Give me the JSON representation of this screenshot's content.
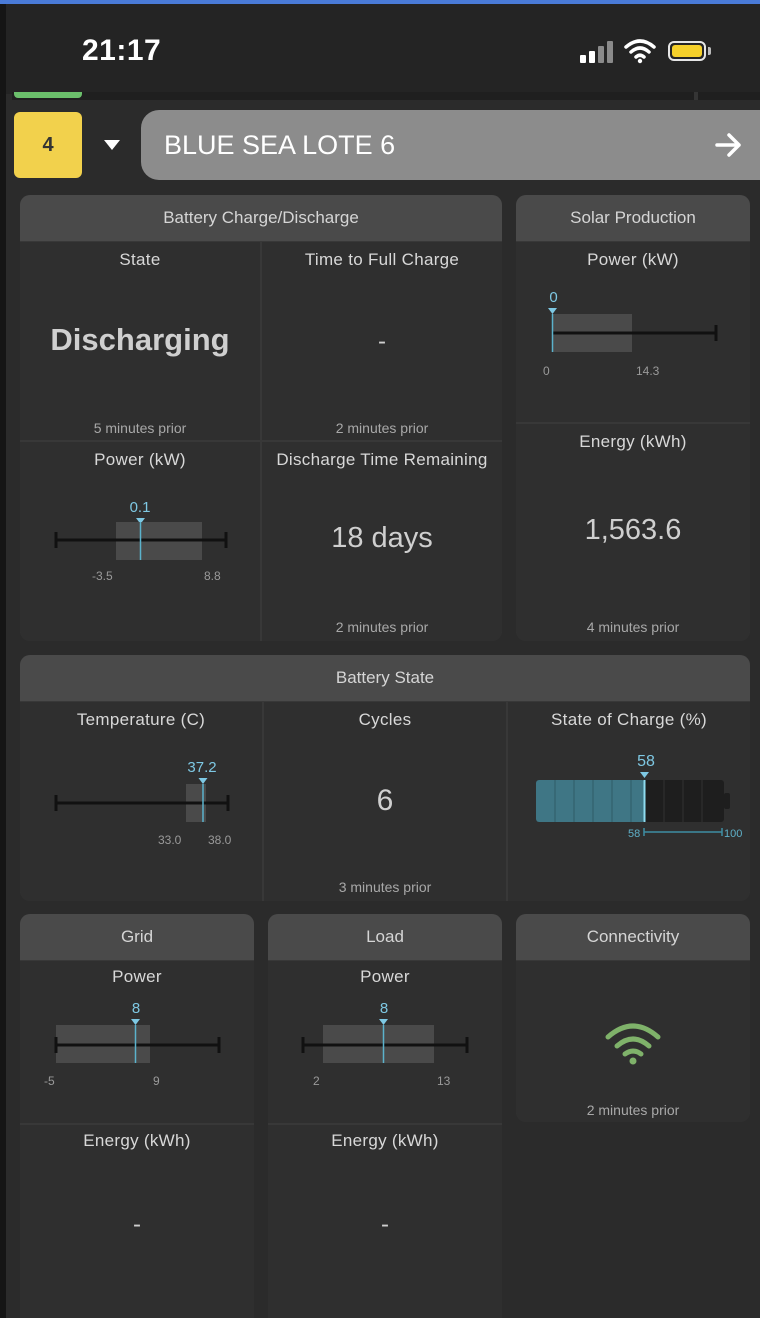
{
  "status_bar": {
    "time": "21:17"
  },
  "site": {
    "number": "4",
    "name": "BLUE SEA LOTE 6"
  },
  "battery_charge": {
    "title": "Battery Charge/Discharge",
    "state": {
      "label": "State",
      "value": "Discharging",
      "updated": "5 minutes prior"
    },
    "time_to_full": {
      "label": "Time to Full Charge",
      "value": "-",
      "updated": "2 minutes prior"
    },
    "power": {
      "label": "Power (kW)",
      "value": "0.1",
      "min": "-3.5",
      "max": "8.8"
    },
    "discharge_remaining": {
      "label": "Discharge Time Remaining",
      "value": "18 days",
      "updated": "2 minutes prior"
    }
  },
  "solar": {
    "title": "Solar Production",
    "power": {
      "label": "Power (kW)",
      "value": "0",
      "min": "0",
      "max": "14.3"
    },
    "energy": {
      "label": "Energy (kWh)",
      "value": "1,563.6",
      "updated": "4 minutes prior"
    }
  },
  "battery_state": {
    "title": "Battery State",
    "temperature": {
      "label": "Temperature (C)",
      "value": "37.2",
      "min": "33.0",
      "max": "38.0"
    },
    "cycles": {
      "label": "Cycles",
      "value": "6",
      "updated": "3 minutes prior"
    },
    "soc": {
      "label": "State of Charge (%)",
      "value": "58",
      "low": "58",
      "max": "100",
      "fraction": 0.58
    }
  },
  "grid": {
    "title": "Grid",
    "power": {
      "label": "Power",
      "value": "8",
      "min": "-5",
      "max": "9"
    },
    "energy": {
      "label": "Energy (kWh)",
      "value": "-"
    }
  },
  "load": {
    "title": "Load",
    "power": {
      "label": "Power",
      "value": "8",
      "min": "2",
      "max": "13"
    },
    "energy": {
      "label": "Energy (kWh)",
      "value": "-"
    }
  },
  "connectivity": {
    "title": "Connectivity",
    "updated": "2 minutes prior",
    "icon": "wifi-icon",
    "color": "#7fb26a"
  }
}
